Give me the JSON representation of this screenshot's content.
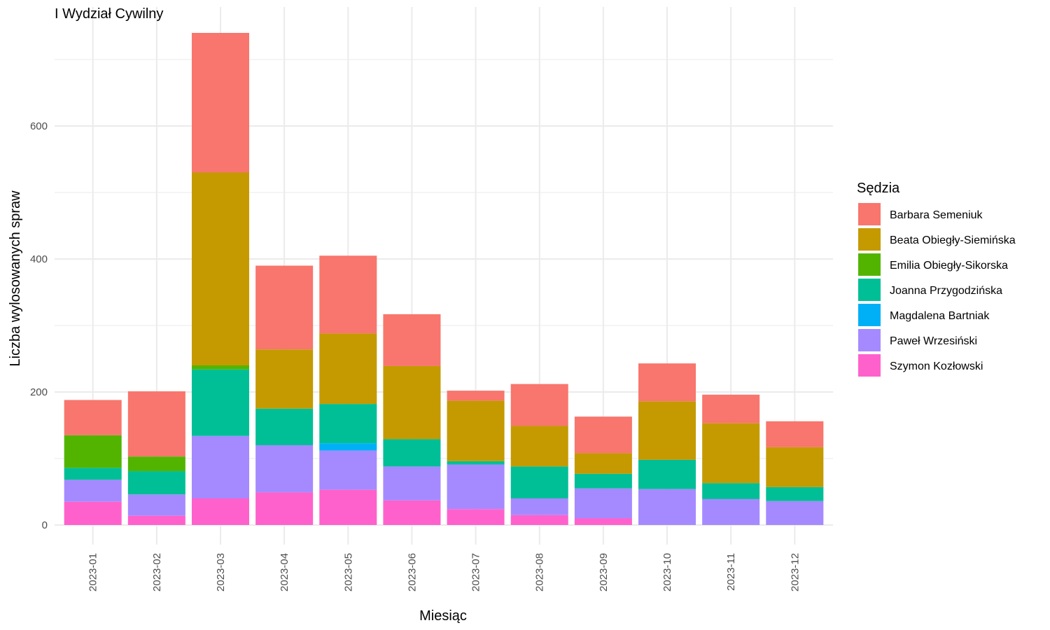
{
  "chart_data": {
    "type": "bar",
    "stacked": true,
    "title": "I Wydział Cywilny",
    "xlabel": "Miesiąc",
    "ylabel": "Liczba wylosowanych spraw",
    "ylim": [
      0,
      740
    ],
    "yticks": [
      0,
      200,
      400,
      600
    ],
    "grid": true,
    "legend_title": "Sędzia",
    "legend_position": "right",
    "categories": [
      "2023-01",
      "2023-02",
      "2023-03",
      "2023-04",
      "2023-05",
      "2023-06",
      "2023-07",
      "2023-08",
      "2023-09",
      "2023-10",
      "2023-11",
      "2023-12"
    ],
    "series": [
      {
        "name": "Szymon Kozłowski",
        "color": "#FF61CC",
        "values": [
          35,
          14,
          40,
          49,
          53,
          37,
          24,
          15,
          10,
          0,
          0,
          0
        ]
      },
      {
        "name": "Paweł Wrzesiński",
        "color": "#A58AFF",
        "values": [
          33,
          32,
          94,
          71,
          59,
          51,
          67,
          25,
          45,
          54,
          39,
          36
        ]
      },
      {
        "name": "Magdalena Bartniak",
        "color": "#00B0F6",
        "values": [
          0,
          0,
          0,
          0,
          11,
          0,
          0,
          0,
          0,
          0,
          0,
          0
        ]
      },
      {
        "name": "Joanna Przygodzińska",
        "color": "#00BF96",
        "values": [
          18,
          35,
          100,
          55,
          59,
          41,
          5,
          48,
          22,
          44,
          24,
          21
        ]
      },
      {
        "name": "Emilia Obiegły-Sikorska",
        "color": "#53B400",
        "values": [
          49,
          22,
          6,
          0,
          0,
          0,
          0,
          0,
          0,
          0,
          0,
          0
        ]
      },
      {
        "name": "Beata Obiegły-Siemińska",
        "color": "#C49A00",
        "values": [
          0,
          0,
          290,
          89,
          106,
          110,
          91,
          61,
          31,
          88,
          90,
          60
        ]
      },
      {
        "name": "Barbara Semeniuk",
        "color": "#F8766D",
        "values": [
          53,
          98,
          210,
          126,
          117,
          78,
          15,
          63,
          55,
          57,
          43,
          39
        ]
      }
    ],
    "legend_order": [
      "Barbara Semeniuk",
      "Beata Obiegły-Siemińska",
      "Emilia Obiegły-Sikorska",
      "Joanna Przygodzińska",
      "Magdalena Bartniak",
      "Paweł Wrzesiński",
      "Szymon Kozłowski"
    ]
  }
}
